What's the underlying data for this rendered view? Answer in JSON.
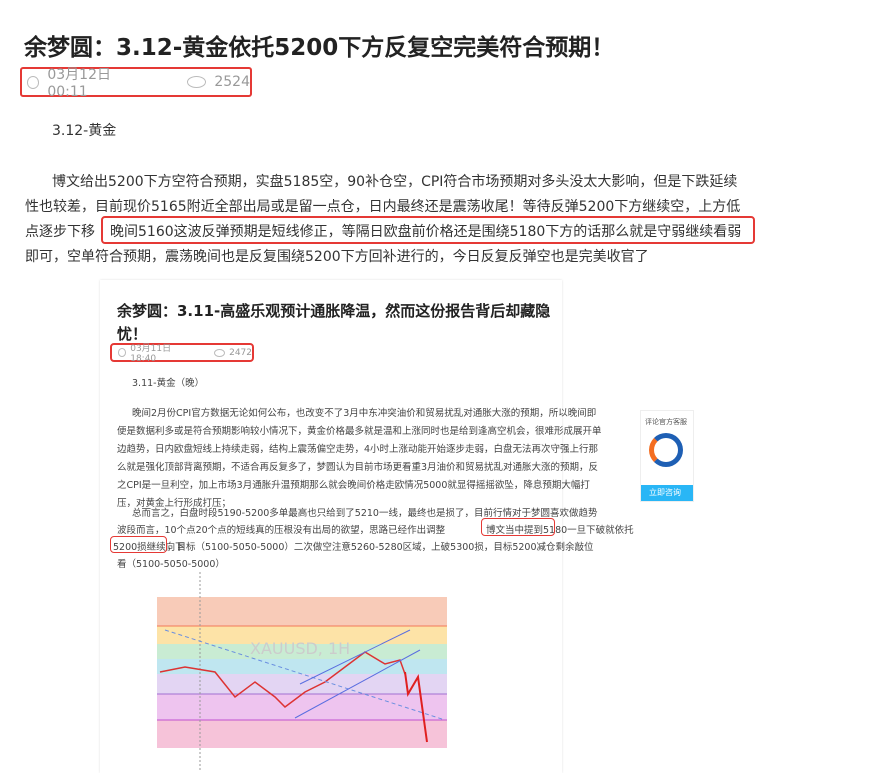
{
  "article": {
    "title": "余梦圆：3.12-黄金依托5200下方反复空完美符合预期！",
    "date": "03月12日 00:11",
    "views": "2524",
    "subtitle": "3.12-黄金",
    "lines": [
      "博文给出5200下方空符合预期，实盘5185空，90补仓空，CPI符合市场预期对多头没太大影响，但是下跌延续",
      "性也较差，目前现价5165附近全部出局或是留一点仓，日内最终还是震荡收尾！等待反弹5200下方继续空，上方低",
      "点逐步下移",
      "晚间5160这波反弹预期是短线修正，等隔日欧盘前价格还是围绕5180下方的话那么就是守弱继续看弱",
      "即可，空单符合预期，震荡晚间也是反复围绕5200下方回补进行的，今日反复反弹空也是完美收官了"
    ]
  },
  "embedded": {
    "title1": "余梦圆：3.11-高盛乐观预计通胀降温，然而这份报告背后却藏隐",
    "title2": "忧！",
    "date": "03月11日 18:40",
    "views": "2472",
    "subtitle": "3.11-黄金（晚）",
    "p1": [
      "晚间2月份CPI官方数据无论如何公布，也改变不了3月中东冲突油价和贸易扰乱对通胀大涨的预期，所以晚间即",
      "便是数据利多或是符合预期影响较小情况下，黄金价格最多就是温和上涨同时也是给到逢高空机会，很难形成展开单",
      "边趋势，日内欧盘短线上持续走弱，结构上震荡偏空走势，4小时上涨动能开始逐步走弱，白盘无法再次守强上行那",
      "么就是强化顶部背离预期，不适合再反复多了，梦圆认为目前市场更看重3月油价和贸易扰乱对通胀大涨的预期，反",
      "之CPI是一旦利空，加上市场3月通胀升温预期那么就会晚间价格走欧情况5000就显得摇摇欲坠，降息预期大幅打",
      "压，对黄金上行形成打压；"
    ],
    "p2": [
      "总而言之，白盘时段5190-5200多单最高也只给到了5210一线，最终也是损了，目前行情对于梦圆喜欢做趋势",
      "波段而言，10个点20个点的短线真的压根没有出局的欲望，思路已经作出调整",
      "博文当中提到5180一旦下破就依托",
      "5200损继续向下",
      "，目标（5100-5050-5000）二次做空注意5260-5280区域，上破5300损，目标5200减仓剩余敲位",
      "看（5100-5050-5000）"
    ],
    "chart_watermark": "XAUUSD, 1H"
  },
  "widget": {
    "label": "评论官方客服",
    "button": "立即咨询"
  },
  "colors": {
    "highlight_box": "#e53935",
    "accent": "#29b6f6"
  }
}
